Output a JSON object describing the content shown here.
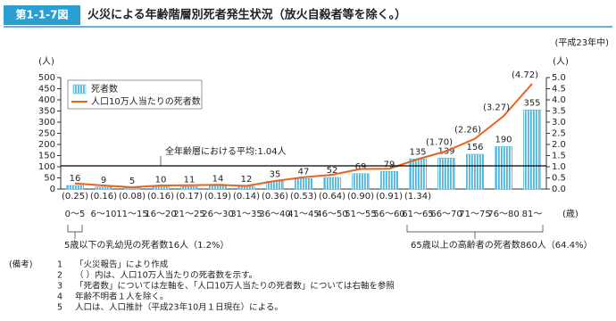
{
  "chart_data": {
    "type": "bar",
    "header_label": "第1-1-7図",
    "title": "火災による年齢階層別死者発生状況（放火自殺者等を除く。）",
    "period": "(平成23年中)",
    "y_unit": "(人)",
    "y2_unit": "(人)",
    "x_unit": "(歳)",
    "categories": [
      "0〜5",
      "6〜10",
      "11〜15",
      "16〜20",
      "21〜25",
      "26〜30",
      "31〜35",
      "36〜40",
      "41〜45",
      "46〜50",
      "51〜55",
      "56〜60",
      "61〜65",
      "66〜70",
      "71〜75",
      "76〜80",
      "81〜"
    ],
    "series": [
      {
        "name": "死者数",
        "type": "bar",
        "color": "#4fb8e0",
        "values": [
          16,
          9,
          5,
          10,
          11,
          14,
          12,
          35,
          47,
          52,
          69,
          79,
          135,
          139,
          156,
          190,
          355
        ]
      },
      {
        "name": "人口10万人当たりの死者数",
        "type": "line",
        "axis": "y2",
        "color": "#e8641e",
        "values": [
          0.25,
          0.16,
          0.08,
          0.16,
          0.17,
          0.19,
          0.14,
          0.36,
          0.53,
          0.64,
          0.9,
          0.91,
          1.34,
          1.7,
          2.26,
          3.27,
          4.72
        ],
        "value_labels": [
          "(0.25)",
          "(0.16)",
          "(0.08)",
          "(0.16)",
          "(0.17)",
          "(0.19)",
          "(0.14)",
          "(0.36)",
          "(0.53)",
          "(0.64)",
          "(0.90)",
          "(0.91)",
          "(1.34)",
          "(1.70)",
          "(2.26)",
          "(3.27)",
          "(4.72)"
        ]
      }
    ],
    "ylim": [
      0,
      500
    ],
    "yticks": [
      0,
      50,
      100,
      150,
      200,
      250,
      300,
      350,
      400,
      450,
      500
    ],
    "y2lim": [
      0,
      5
    ],
    "y2ticks": [
      {
        "value": 0,
        "label": "0.0"
      },
      {
        "value": 0.5,
        "label": "0.5"
      },
      {
        "value": 1,
        "label": "1.0"
      },
      {
        "value": 1.5,
        "label": "1.5"
      },
      {
        "value": 2,
        "label": "2.0"
      },
      {
        "value": 2.5,
        "label": "2.5"
      },
      {
        "value": 3,
        "label": "3.0"
      },
      {
        "value": 3.5,
        "label": "3.5"
      },
      {
        "value": 4,
        "label": "4.0"
      },
      {
        "value": 4.5,
        "label": "4.5"
      },
      {
        "value": 5,
        "label": "5.0"
      }
    ],
    "reference": {
      "value": 1.04,
      "axis": "y2",
      "label": "全年齢層における平均:1.04人"
    },
    "annotations": [
      "5歳以下の乳幼児の死者数16人（1.2%）",
      "65歳以上の高齢者の死者数860人（64.4%）"
    ],
    "notes": {
      "heading": "(備考)",
      "items": [
        {
          "number": "1",
          "text": "「火災報告」により作成"
        },
        {
          "number": "2",
          "text": "（ ）内は、人口10万人当たりの死者数を示す。"
        },
        {
          "number": "3",
          "text": "「死者数」については左軸を、「人口10万人当たりの死者数」については右軸を参照"
        },
        {
          "number": "4",
          "text": "年齢不明者１人を除く。"
        },
        {
          "number": "5",
          "text": "人口は、人口推計（平成23年10月１日現在）による。"
        }
      ]
    }
  }
}
